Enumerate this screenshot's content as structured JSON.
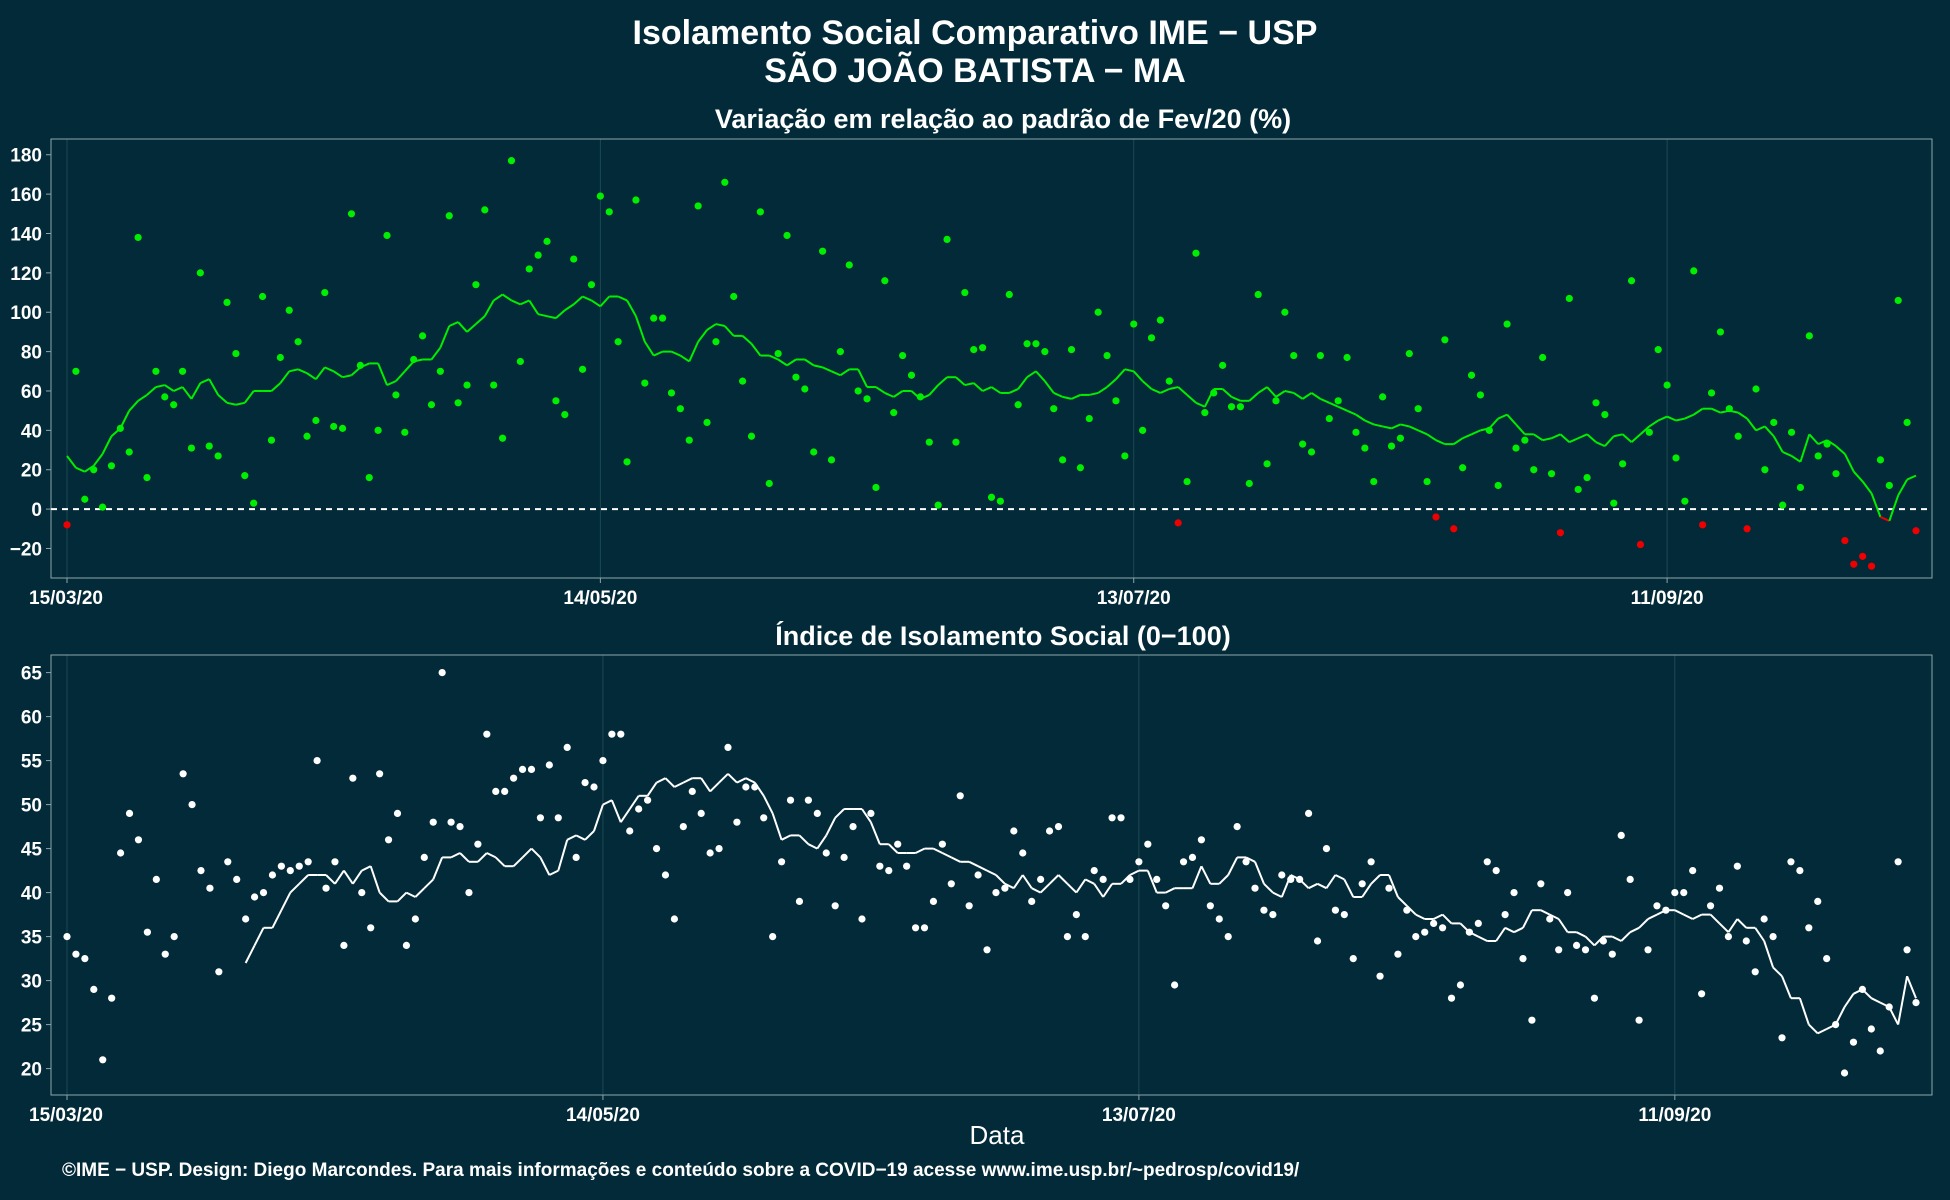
{
  "header": {
    "title_line1": "Isolamento Social Comparativo IME − USP",
    "title_line2": "SÃO JOÃO BATISTA − MA"
  },
  "x_axis": {
    "label": "Data"
  },
  "caption": "©IME − USP. Design: Diego Marcondes. Para mais informações e conteúdo sobre a COVID−19 acesse www.ime.usp.br/~pedrosp/covid19/",
  "colors": {
    "background": "#022a38",
    "grid": "#1c4a52",
    "axis": "#8fa5ab",
    "positive_points": "#00ee00",
    "negative_points": "#ee0000",
    "index_points": "#ffffff"
  },
  "chart_data": [
    {
      "type": "scatter",
      "title": "Variação em relação ao padrão de Fev/20 (%)",
      "xlabel": "Data",
      "ylabel": "",
      "x_start": "15/03/20",
      "x_end": "05/10/20",
      "x_ticks": [
        "15/03/20",
        "14/05/20",
        "13/07/20",
        "11/09/20"
      ],
      "ylim": [
        -35,
        188
      ],
      "y_ticks": [
        -20,
        0,
        20,
        40,
        60,
        80,
        100,
        120,
        140,
        160,
        180
      ],
      "reference_line": 0,
      "grid": true,
      "series": [
        {
          "kind": "points",
          "values": [
            -8,
            70,
            5,
            20,
            1,
            22,
            41,
            29,
            138,
            16,
            70,
            57,
            53,
            70,
            31,
            120,
            32,
            27,
            105,
            79,
            17,
            3,
            108,
            35,
            77,
            101,
            85,
            37,
            45,
            110,
            42,
            41,
            150,
            73,
            16,
            40,
            139,
            58,
            39,
            76,
            88,
            53,
            70,
            149,
            54,
            63,
            114,
            152,
            63,
            36,
            177,
            75,
            122,
            129,
            136,
            55,
            48,
            127,
            71,
            114,
            159,
            151,
            85,
            24,
            157,
            64,
            97,
            97,
            59,
            51,
            35,
            154,
            44,
            85,
            166,
            108,
            65,
            37,
            151,
            13,
            79,
            139,
            67,
            61,
            29,
            131,
            25,
            80,
            124,
            60,
            56,
            11,
            116,
            49,
            78,
            68,
            57,
            34,
            2,
            137,
            34,
            110,
            81,
            82,
            6,
            4,
            109,
            53,
            84,
            84,
            80,
            51,
            25,
            81,
            21,
            46,
            100,
            78,
            55,
            27,
            94,
            40,
            87,
            96,
            65,
            -7,
            14,
            130,
            49,
            59,
            73,
            52,
            52,
            13,
            109,
            23,
            55,
            100,
            78,
            33,
            29,
            78,
            46,
            55,
            77,
            39,
            31,
            14,
            57,
            32,
            36,
            79,
            51,
            14,
            -4,
            86,
            -10,
            21,
            68,
            58,
            40,
            12,
            94,
            31,
            35,
            20,
            77,
            18,
            -12,
            107,
            10,
            16,
            54,
            48,
            3,
            23,
            116,
            -18,
            39,
            81,
            63,
            26,
            4,
            121,
            -8,
            59,
            90,
            51,
            37,
            -10,
            61,
            20,
            44,
            2,
            39,
            11,
            88,
            27,
            33,
            18,
            -16,
            -28,
            -24,
            -29,
            25,
            12,
            106,
            44,
            -11
          ]
        },
        {
          "kind": "moving-average",
          "values": [
            27,
            21,
            19,
            22,
            28,
            37,
            41,
            50,
            55,
            58,
            62,
            63,
            60,
            62,
            56,
            64,
            66,
            58,
            54,
            53,
            54,
            60,
            60,
            60,
            64,
            70,
            71,
            69,
            66,
            72,
            70,
            67,
            68,
            72,
            74,
            74,
            63,
            65,
            70,
            75,
            76,
            76,
            82,
            93,
            95,
            90,
            94,
            98,
            106,
            109,
            106,
            104,
            106,
            99,
            98,
            97,
            101,
            104,
            108,
            106,
            103,
            108,
            108,
            106,
            98,
            85,
            78,
            80,
            80,
            78,
            75,
            85,
            91,
            94,
            93,
            88,
            88,
            84,
            78,
            78,
            76,
            73,
            76,
            76,
            73,
            72,
            70,
            68,
            71,
            71,
            62,
            62,
            59,
            57,
            60,
            60,
            56,
            58,
            63,
            67,
            67,
            63,
            64,
            60,
            62,
            59,
            59,
            61,
            67,
            70,
            65,
            59,
            57,
            56,
            58,
            58,
            59,
            62,
            66,
            71,
            70,
            65,
            61,
            59,
            61,
            62,
            58,
            54,
            52,
            61,
            61,
            57,
            55,
            55,
            59,
            62,
            57,
            60,
            59,
            56,
            59,
            56,
            54,
            52,
            50,
            48,
            45,
            43,
            42,
            41,
            43,
            42,
            40,
            38,
            35,
            33,
            33,
            36,
            38,
            40,
            41,
            46,
            48,
            43,
            38,
            38,
            35,
            36,
            38,
            34,
            36,
            38,
            34,
            32,
            37,
            38,
            34,
            38,
            42,
            45,
            47,
            45,
            46,
            48,
            51,
            51,
            49,
            50,
            49,
            46,
            40,
            42,
            37,
            29,
            27,
            24,
            38,
            33,
            35,
            32,
            28,
            19,
            14,
            8,
            -4,
            -6,
            7,
            15,
            17
          ]
        }
      ]
    },
    {
      "type": "scatter",
      "title": "Índice de Isolamento Social (0−100)",
      "xlabel": "Data",
      "ylabel": "",
      "x_start": "15/03/20",
      "x_end": "05/10/20",
      "x_ticks": [
        "15/03/20",
        "14/05/20",
        "13/07/20",
        "11/09/20"
      ],
      "ylim": [
        17,
        67
      ],
      "y_ticks": [
        20,
        25,
        30,
        35,
        40,
        45,
        50,
        55,
        60,
        65
      ],
      "grid": true,
      "series": [
        {
          "kind": "points",
          "values": [
            35,
            33,
            32.5,
            29,
            21,
            28,
            44.5,
            49,
            46,
            35.5,
            41.5,
            33,
            35,
            53.5,
            50,
            42.5,
            40.5,
            31,
            43.5,
            41.5,
            37,
            39.5,
            40,
            42,
            43,
            42.5,
            43,
            43.5,
            55,
            40.5,
            43.5,
            34,
            53,
            40,
            36,
            53.5,
            46,
            49,
            34,
            37,
            44,
            48,
            65,
            48,
            47.5,
            40,
            45.5,
            58,
            51.5,
            51.5,
            53,
            54,
            54,
            48.5,
            54.5,
            48.5,
            56.5,
            44,
            52.5,
            52,
            55,
            58,
            58,
            47,
            49.5,
            50.5,
            45,
            42,
            37,
            47.5,
            51.5,
            49,
            44.5,
            45,
            56.5,
            48,
            52,
            52,
            48.5,
            35,
            43.5,
            50.5,
            39,
            50.5,
            49,
            44.5,
            38.5,
            44,
            47.5,
            37,
            49,
            43,
            42.5,
            45.5,
            43,
            36,
            36,
            39,
            45.5,
            41,
            51,
            38.5,
            42,
            33.5,
            40,
            40.5,
            47,
            44.5,
            39,
            41.5,
            47,
            47.5,
            35,
            37.5,
            35,
            42.5,
            41.5,
            48.5,
            48.5,
            41.5,
            43.5,
            45.5,
            41.5,
            38.5,
            29.5,
            43.5,
            44,
            46,
            38.5,
            37,
            35,
            47.5,
            43.5,
            40.5,
            38,
            37.5,
            42,
            41.5,
            41.5,
            49,
            34.5,
            45,
            38,
            37.5,
            32.5,
            41,
            43.5,
            30.5,
            40.5,
            33,
            38,
            35,
            35.5,
            36.5,
            36,
            28,
            29.5,
            35.5,
            36.5,
            43.5,
            42.5,
            37.5,
            40,
            32.5,
            25.5,
            41,
            37,
            33.5,
            40,
            34,
            33.5,
            28,
            34.5,
            33,
            46.5,
            41.5,
            25.5,
            33.5,
            38.5,
            38,
            40,
            40,
            42.5,
            28.5,
            38.5,
            40.5,
            35,
            43,
            34.5,
            31,
            37,
            35,
            23.5,
            43.5,
            42.5,
            36,
            39,
            32.5,
            25,
            19.5,
            23,
            29,
            24.5,
            22,
            27,
            43.5,
            33.5,
            27.5
          ]
        },
        {
          "kind": "moving-average",
          "values": [
            32,
            34,
            36,
            36,
            38,
            40,
            41,
            42,
            42,
            42,
            41,
            42.5,
            41,
            42.5,
            43,
            40,
            39,
            39,
            40,
            39.5,
            40.5,
            41.5,
            44,
            44,
            44.5,
            43.5,
            43.5,
            44.5,
            44,
            43,
            43,
            44,
            45,
            44,
            42,
            42.5,
            46,
            46.5,
            46,
            47,
            50,
            50.5,
            48,
            49.5,
            51,
            51,
            52.5,
            53,
            52,
            52.5,
            53,
            53,
            51.5,
            52.5,
            53.5,
            52.5,
            53,
            52.5,
            51,
            49,
            46,
            46.5,
            46.5,
            45.5,
            45,
            46.5,
            48.5,
            49.5,
            49.5,
            49.5,
            48,
            45.5,
            45.5,
            44.5,
            44.5,
            44.5,
            45,
            45,
            44.5,
            44,
            43.5,
            43.5,
            43,
            42.5,
            42,
            41,
            40.5,
            42,
            40.5,
            40,
            41,
            42,
            41,
            40,
            41.5,
            41,
            39.5,
            41,
            41,
            42,
            42.5,
            42.5,
            40,
            40,
            40.5,
            40.5,
            40.5,
            43,
            41,
            41,
            42,
            44,
            44,
            43.5,
            41,
            40,
            39.5,
            42,
            41.5,
            40.5,
            41,
            40.5,
            42,
            41.5,
            39.5,
            39.5,
            41,
            42,
            42,
            39.5,
            38.5,
            37.5,
            37,
            37,
            37.5,
            36.5,
            36.5,
            35.5,
            35,
            34.5,
            34.5,
            36,
            35.5,
            36,
            38,
            38,
            37.5,
            37,
            35.5,
            35.5,
            35,
            34,
            35,
            35,
            34.5,
            35.5,
            36,
            37,
            37.5,
            38,
            38,
            37.5,
            37,
            37.5,
            37.5,
            36.5,
            35.5,
            37,
            36,
            36,
            34.5,
            31.5,
            30.5,
            28,
            28,
            25,
            24,
            24.5,
            25,
            27,
            28.5,
            29,
            28,
            27.5,
            27,
            25,
            30.5,
            28
          ]
        }
      ]
    }
  ]
}
